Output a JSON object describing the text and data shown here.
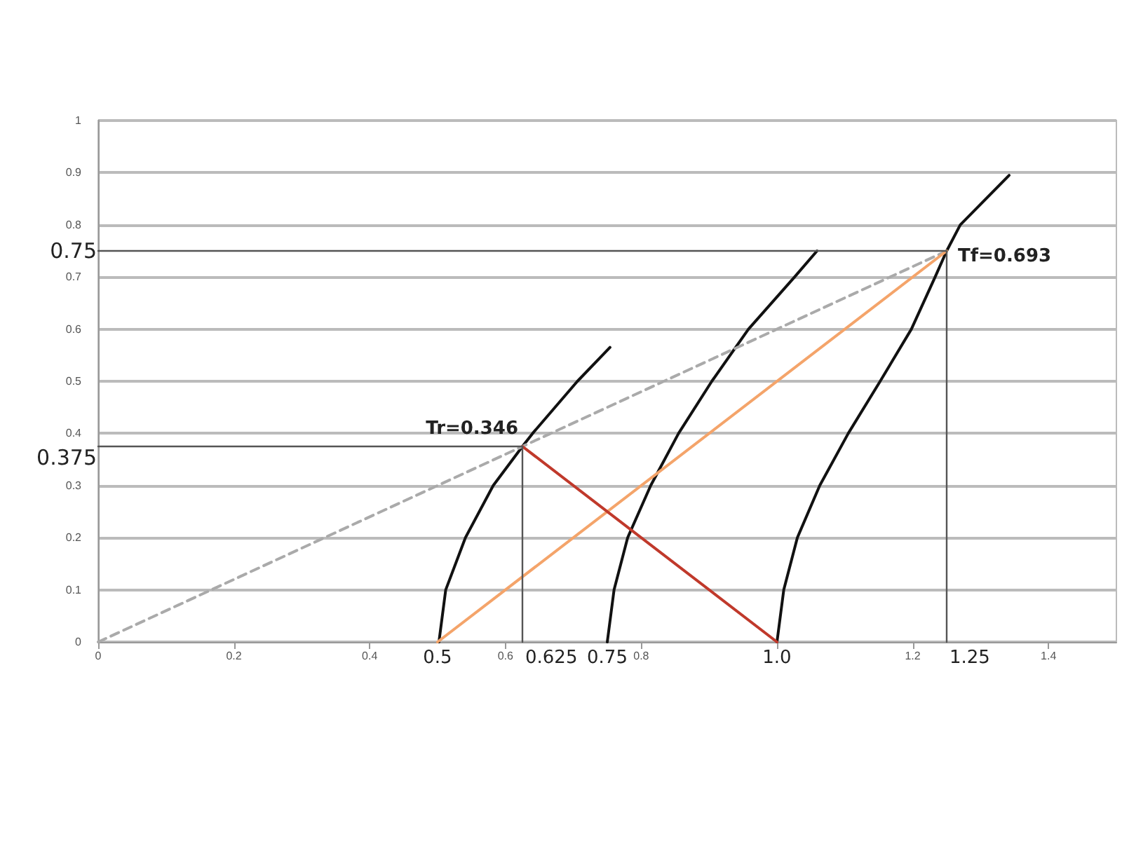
{
  "chart_data": {
    "type": "line",
    "xlim": [
      0,
      1.5
    ],
    "ylim": [
      0,
      1
    ],
    "xticks": [
      0,
      0.2,
      0.4,
      0.6,
      0.8,
      {
        "value": 1,
        "label": null
      },
      1.2,
      1.4
    ],
    "yticks": [
      0,
      0.1,
      0.2,
      0.3,
      0.4,
      0.5,
      0.6,
      0.7,
      0.8,
      0.9,
      1
    ],
    "grid": "y",
    "marker": "none",
    "series": [
      {
        "color": "#111111",
        "x": [
          0.502,
          0.512,
          0.541,
          0.582,
          0.625,
          0.64,
          0.706,
          0.754
        ],
        "values": [
          0,
          0.1,
          0.2,
          0.3,
          0.375,
          0.4,
          0.5,
          0.565
        ]
      },
      {
        "color": "#111111",
        "x": [
          0.75,
          0.76,
          0.78,
          0.814,
          0.855,
          0.904,
          0.958,
          1.026,
          1.059
        ],
        "values": [
          0,
          0.1,
          0.2,
          0.3,
          0.4,
          0.5,
          0.6,
          0.7,
          0.75
        ]
      },
      {
        "color": "#111111",
        "x": [
          1.0,
          1.01,
          1.03,
          1.063,
          1.105,
          1.152,
          1.198,
          1.233,
          1.25,
          1.27,
          1.342
        ],
        "values": [
          0,
          0.1,
          0.2,
          0.3,
          0.4,
          0.5,
          0.6,
          0.7,
          0.75,
          0.8,
          0.895
        ]
      },
      {
        "color": "#aaaaaa",
        "line_style": "dashed",
        "x": [
          0,
          1.25
        ],
        "values": [
          0,
          0.75
        ]
      },
      {
        "color": "#f4a46a",
        "x": [
          0.5,
          1.25
        ],
        "values": [
          0,
          0.75
        ]
      },
      {
        "color": "#c0392b",
        "x": [
          1.0,
          0.625
        ],
        "values": [
          0,
          0.375
        ]
      },
      {
        "color": "#555555",
        "x": [
          0.625,
          0.625
        ],
        "values": [
          0,
          0.375
        ]
      },
      {
        "color": "#555555",
        "x": [
          0,
          0.625
        ],
        "values": [
          0.375,
          0.375
        ]
      },
      {
        "color": "#555555",
        "x": [
          1.25,
          1.25
        ],
        "values": [
          0,
          0.75
        ]
      },
      {
        "color": "#555555",
        "x": [
          0,
          1.25
        ],
        "values": [
          0.75,
          0.75
        ]
      }
    ],
    "annotations": [
      {
        "text": "Tr=0.346",
        "x": 0.625,
        "y": 0.375
      },
      {
        "text": "Tf=0.693",
        "x": 1.25,
        "y": 0.75
      },
      {
        "text": "0.5",
        "x": 0.5,
        "y": 0
      },
      {
        "text": "0.625",
        "x": 0.625,
        "y": 0
      },
      {
        "text": "0.75",
        "x": 0.75,
        "y": 0
      },
      {
        "text": "1.0",
        "x": 1.0,
        "y": 0
      },
      {
        "text": "1.25",
        "x": 1.25,
        "y": 0
      },
      {
        "text": "0.375",
        "x": 0,
        "y": 0.375
      },
      {
        "text": "0.75",
        "x": 0,
        "y": 0.75
      }
    ]
  }
}
